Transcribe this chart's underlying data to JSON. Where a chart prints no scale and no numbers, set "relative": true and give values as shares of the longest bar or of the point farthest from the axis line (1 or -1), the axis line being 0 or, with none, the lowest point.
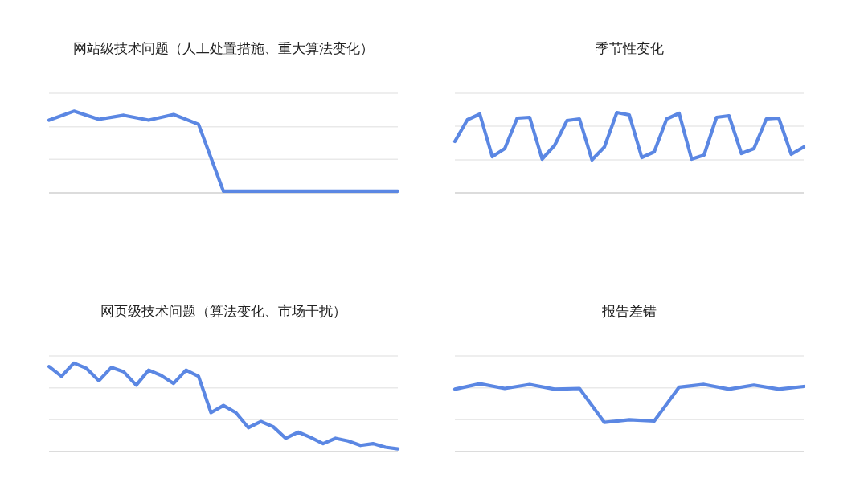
{
  "chart_data": [
    {
      "type": "line",
      "title": "网站级技术问题（人工处置措施、重大算法变化）",
      "relative": true,
      "color": "#5b87e3",
      "ref_lines": [
        {
          "axis": "y",
          "value": 0.41,
          "color": "#e9e9e9"
        },
        {
          "axis": "y",
          "value": 0.81,
          "color": "#e9e9e9"
        },
        {
          "axis": "y",
          "value": 1.22,
          "color": "#e9e9e9"
        }
      ],
      "categories": [
        null,
        null,
        null,
        null,
        null,
        null,
        null,
        null,
        null,
        null,
        null,
        null,
        null,
        null,
        null
      ],
      "values": [
        0.89,
        1,
        0.9,
        0.95,
        0.89,
        0.96,
        0.84,
        0.02,
        0.02,
        0.02,
        0.02,
        0.02,
        0.02,
        0.02,
        0.02
      ]
    },
    {
      "type": "line",
      "title": "季节性变化",
      "relative": true,
      "color": "#5b87e3",
      "ref_lines": [
        {
          "axis": "y",
          "value": 0.41,
          "color": "#e9e9e9"
        },
        {
          "axis": "y",
          "value": 0.83,
          "color": "#e9e9e9"
        },
        {
          "axis": "y",
          "value": 1.24,
          "color": "#e9e9e9"
        }
      ],
      "categories": [
        null,
        null,
        null,
        null,
        null,
        null,
        null,
        null,
        null,
        null,
        null,
        null,
        null,
        null,
        null,
        null,
        null,
        null,
        null,
        null,
        null,
        null,
        null,
        null,
        null,
        null,
        null,
        null,
        null
      ],
      "values": [
        0.64,
        0.91,
        0.98,
        0.45,
        0.55,
        0.93,
        0.94,
        0.42,
        0.59,
        0.9,
        0.92,
        0.41,
        0.57,
        1,
        0.97,
        0.44,
        0.51,
        0.92,
        0.99,
        0.42,
        0.47,
        0.94,
        0.96,
        0.49,
        0.55,
        0.92,
        0.93,
        0.48,
        0.57
      ]
    },
    {
      "type": "line",
      "title": "网页级技术问题（算法变化、市场干扰）",
      "relative": true,
      "color": "#5b87e3",
      "ref_lines": [
        {
          "axis": "y",
          "value": 0.36,
          "color": "#e9e9e9"
        },
        {
          "axis": "y",
          "value": 0.72,
          "color": "#e9e9e9"
        },
        {
          "axis": "y",
          "value": 1.08,
          "color": "#e9e9e9"
        }
      ],
      "categories": [
        null,
        null,
        null,
        null,
        null,
        null,
        null,
        null,
        null,
        null,
        null,
        null,
        null,
        null,
        null,
        null,
        null,
        null,
        null,
        null,
        null,
        null,
        null,
        null,
        null,
        null,
        null,
        null,
        null
      ],
      "values": [
        0.96,
        0.85,
        1,
        0.94,
        0.8,
        0.95,
        0.9,
        0.75,
        0.92,
        0.86,
        0.77,
        0.92,
        0.85,
        0.44,
        0.52,
        0.44,
        0.27,
        0.34,
        0.28,
        0.15,
        0.22,
        0.16,
        0.09,
        0.15,
        0.12,
        0.07,
        0.09,
        0.05,
        0.03
      ]
    },
    {
      "type": "line",
      "title": "报告差错",
      "relative": true,
      "color": "#5b87e3",
      "ref_lines": [
        {
          "axis": "y",
          "value": 0.47,
          "color": "#e9e9e9"
        },
        {
          "axis": "y",
          "value": 0.94,
          "color": "#e9e9e9"
        },
        {
          "axis": "y",
          "value": 1.41,
          "color": "#e9e9e9"
        }
      ],
      "categories": [
        null,
        null,
        null,
        null,
        null,
        null,
        null,
        null,
        null,
        null,
        null,
        null,
        null,
        null,
        null
      ],
      "values": [
        0.92,
        1,
        0.93,
        0.99,
        0.92,
        0.93,
        0.43,
        0.47,
        0.45,
        0.95,
        0.99,
        0.92,
        0.98,
        0.92,
        0.96
      ]
    }
  ]
}
